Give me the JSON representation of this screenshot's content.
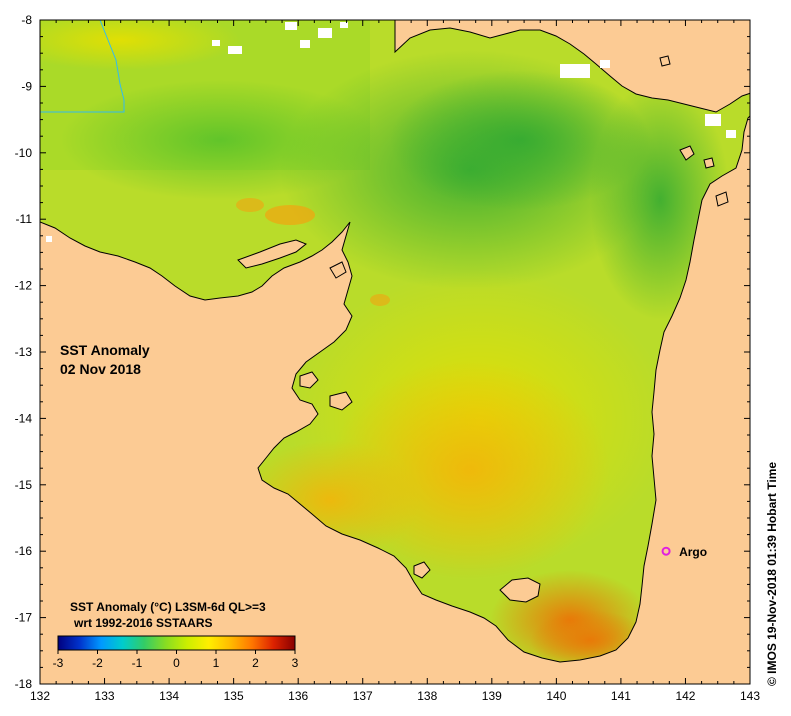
{
  "map": {
    "title": "SST Anomaly",
    "date": "02 Nov 2018",
    "lon_ticks": [
      "132",
      "133",
      "134",
      "135",
      "136",
      "137",
      "138",
      "139",
      "140",
      "141",
      "142",
      "143"
    ],
    "lat_ticks": [
      "-8",
      "-9",
      "-10",
      "-11",
      "-12",
      "-13",
      "-14",
      "-15",
      "-16",
      "-17",
      "-18"
    ],
    "lon_range": [
      132,
      143
    ],
    "lat_range": [
      -18,
      -8
    ],
    "land_color": "#fccb94",
    "marker": {
      "label": "Argo",
      "lon": 141.7,
      "lat": -16.0,
      "color": "#e020e0"
    }
  },
  "colorbar": {
    "title_line1": "SST Anomaly (°C) L3SM-6d QL>=3",
    "title_line2": "wrt 1992-2016 SSTAARS",
    "ticks": [
      "-3",
      "-2",
      "-1",
      "0",
      "1",
      "2",
      "3"
    ],
    "range": [
      -3,
      3
    ],
    "colors": [
      "#00007f",
      "#0033cc",
      "#0099ff",
      "#00cccc",
      "#33cc66",
      "#88dd22",
      "#ccee00",
      "#ffee00",
      "#ffbb00",
      "#ff7700",
      "#dd2200",
      "#880000"
    ]
  },
  "credit": "© IMOS 19-Nov-2018 01:39 Hobart Time"
}
